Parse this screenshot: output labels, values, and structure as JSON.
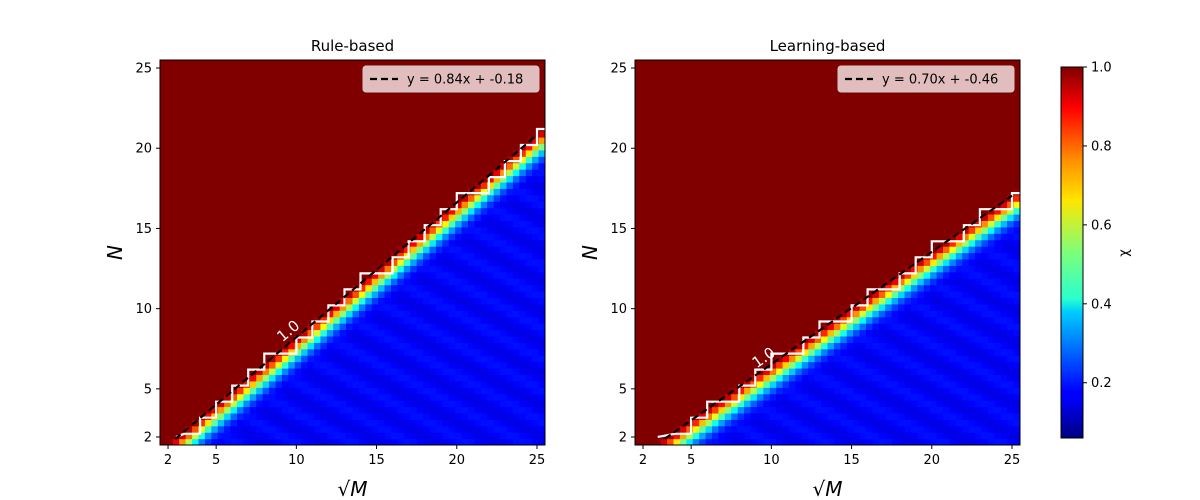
{
  "chart_data": [
    {
      "type": "heatmap",
      "title": "Rule-based",
      "xlabel": "√M",
      "ylabel": "N",
      "xlim": [
        1.5,
        25.5
      ],
      "ylim": [
        1.5,
        25.5
      ],
      "xticks": [
        2,
        5,
        10,
        15,
        20,
        25
      ],
      "yticks": [
        2,
        5,
        10,
        15,
        20,
        25
      ],
      "fit": {
        "slope": 0.84,
        "intercept": -0.18,
        "label": "y = 0.84x + -0.18"
      },
      "contour_label": "1.0",
      "transition_width": 1.6,
      "legend_position": "top-right"
    },
    {
      "type": "heatmap",
      "title": "Learning-based",
      "xlabel": "√M",
      "ylabel": "N",
      "xlim": [
        1.5,
        25.5
      ],
      "ylim": [
        1.5,
        25.5
      ],
      "xticks": [
        2,
        5,
        10,
        15,
        20,
        25
      ],
      "yticks": [
        2,
        5,
        10,
        15,
        20,
        25
      ],
      "fit": {
        "slope": 0.7,
        "intercept": -0.46,
        "label": "y = 0.70x + -0.46"
      },
      "contour_label": "1.0",
      "transition_width": 1.6,
      "legend_position": "top-right"
    }
  ],
  "colorbar": {
    "label": "χ",
    "range": [
      0.06,
      1.0
    ],
    "ticks": [
      "0.2",
      "0.4",
      "0.6",
      "0.8",
      "1.0"
    ],
    "tick_values": [
      0.2,
      0.4,
      0.6,
      0.8,
      1.0
    ],
    "colormap": "jet"
  }
}
